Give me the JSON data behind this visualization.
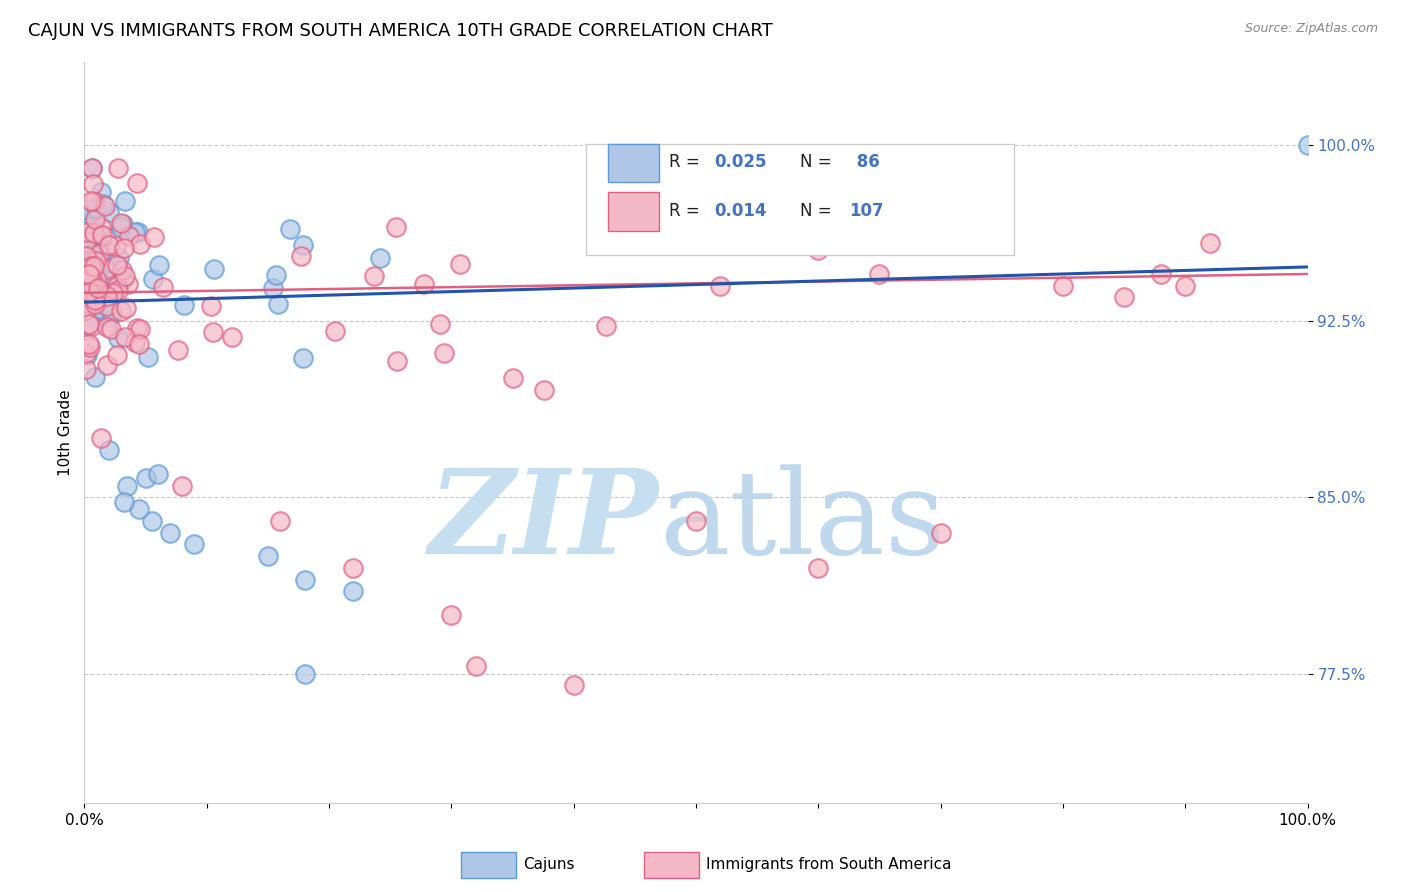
{
  "title": "CAJUN VS IMMIGRANTS FROM SOUTH AMERICA 10TH GRADE CORRELATION CHART",
  "source": "Source: ZipAtlas.com",
  "ylabel": "10th Grade",
  "ytick_labels": [
    "77.5%",
    "85.0%",
    "92.5%",
    "100.0%"
  ],
  "ytick_values": [
    0.775,
    0.85,
    0.925,
    1.0
  ],
  "xlim": [
    0.0,
    1.0
  ],
  "ylim": [
    0.72,
    1.035
  ],
  "cajun_color": "#aec6e8",
  "cajun_edge": "#5b9bd5",
  "immigrant_color": "#f4b8c8",
  "immigrant_edge": "#e06080",
  "line_cajun_color": "#2255aa",
  "line_immigrant_color": "#e06080",
  "watermark_zip_color": "#c5dff0",
  "watermark_atlas_color": "#b8d4ec",
  "title_fontsize": 13,
  "axis_label_fontsize": 11,
  "tick_fontsize": 11,
  "legend_r1": "0.025",
  "legend_n1": "86",
  "legend_r2": "0.014",
  "legend_n2": "107",
  "cajun_line_start_y": 0.933,
  "cajun_line_end_y": 0.948,
  "immigrant_line_start_y": 0.937,
  "immigrant_line_end_y": 0.945
}
